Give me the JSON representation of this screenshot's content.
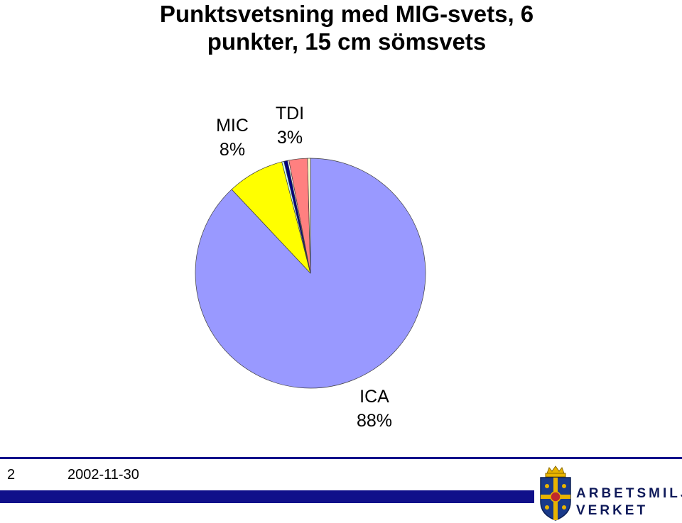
{
  "slide": {
    "title": "Punktsvetsning med MIG-svets, 6\npunkter, 15 cm sömsvets"
  },
  "chart_data": {
    "type": "pie",
    "start_angle_deg": 0,
    "direction": "clockwise",
    "slices": [
      {
        "name": "ICA",
        "value": 88,
        "label": "ICA\n88%",
        "color": "#9999ff"
      },
      {
        "name": "MIC",
        "value": 8,
        "label": "MIC\n8%",
        "color": "#ffff00"
      },
      {
        "name": "",
        "value": 0.3,
        "label": "",
        "color": "#ccffff"
      },
      {
        "name": "",
        "value": 0.5,
        "label": "",
        "color": "#000080"
      },
      {
        "name": "",
        "value": 0.2,
        "label": "",
        "color": "#ffffff"
      },
      {
        "name": "TDI",
        "value": 2.6,
        "label": "TDI\n3%",
        "color": "#ff8080"
      },
      {
        "name": "",
        "value": 0.4,
        "label": "",
        "color": "#ffffcc"
      }
    ]
  },
  "footer": {
    "slide_number": "2",
    "date": "2002-11-30",
    "logo_line1": "ARBETSMILJÖ",
    "logo_line2": "VERKET"
  },
  "colors": {
    "footer_blue": "#10108a",
    "logo_blue": "#1a3a8a",
    "logo_gold": "#e8b400"
  }
}
